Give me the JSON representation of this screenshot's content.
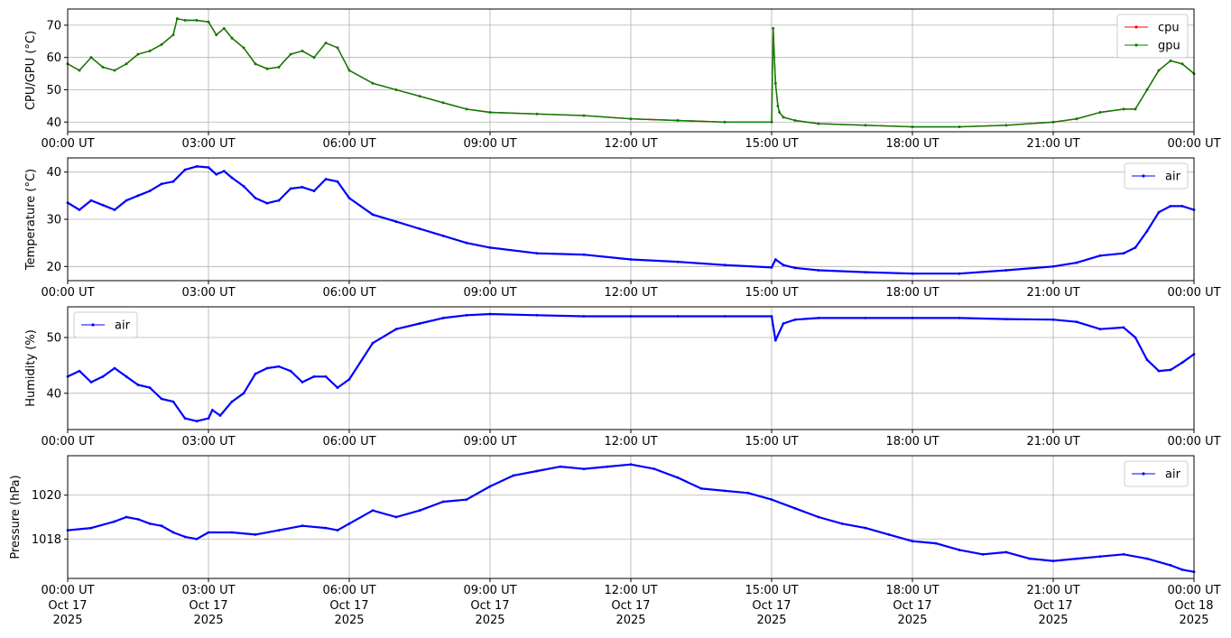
{
  "x_tick_labels": [
    "00:00 UT",
    "03:00 UT",
    "06:00 UT",
    "09:00 UT",
    "12:00 UT",
    "15:00 UT",
    "18:00 UT",
    "21:00 UT",
    "00:00 UT"
  ],
  "x_tick_dates": [
    [
      "Oct 17",
      "2025"
    ],
    [
      "Oct 17",
      "2025"
    ],
    [
      "Oct 17",
      "2025"
    ],
    [
      "Oct 17",
      "2025"
    ],
    [
      "Oct 17",
      "2025"
    ],
    [
      "Oct 17",
      "2025"
    ],
    [
      "Oct 17",
      "2025"
    ],
    [
      "Oct 17",
      "2025"
    ],
    [
      "Oct 18",
      "2025"
    ]
  ],
  "chart_data": [
    {
      "type": "line",
      "ylabel": "CPU/GPU (°C)",
      "xlabel": "",
      "xlim": [
        "2025-10-17 00:00 UT",
        "2025-10-18 00:00 UT"
      ],
      "ylim": [
        37,
        75
      ],
      "yticks": [
        40,
        50,
        60,
        70
      ],
      "grid": true,
      "legend": "top-right",
      "colors": {
        "cpu": "#ff0000",
        "gpu": "#008000"
      },
      "series": [
        {
          "name": "cpu",
          "color": "#ff0000",
          "x": [
            "00:00",
            "00:15",
            "00:30",
            "00:45",
            "01:00",
            "01:15",
            "01:30",
            "01:45",
            "02:00",
            "02:15",
            "02:20",
            "02:30",
            "02:45",
            "03:00",
            "03:10",
            "03:20",
            "03:30",
            "03:45",
            "04:00",
            "04:15",
            "04:30",
            "04:45",
            "05:00",
            "05:15",
            "05:30",
            "05:45",
            "06:00",
            "06:30",
            "07:00",
            "07:30",
            "08:00",
            "08:30",
            "09:00",
            "10:00",
            "11:00",
            "12:00",
            "13:00",
            "14:00",
            "15:00",
            "15:02",
            "15:05",
            "15:08",
            "15:10",
            "15:15",
            "15:30",
            "16:00",
            "17:00",
            "18:00",
            "19:00",
            "20:00",
            "21:00",
            "21:30",
            "22:00",
            "22:30",
            "22:45",
            "23:00",
            "23:15",
            "23:30",
            "23:45",
            "24:00"
          ],
          "values": [
            58,
            56,
            60,
            57,
            56,
            58,
            61,
            62,
            64,
            67,
            72,
            71.5,
            71.5,
            71,
            67,
            69,
            66,
            63,
            58,
            56.5,
            57,
            61,
            62,
            60,
            64.5,
            63,
            56,
            52,
            50,
            48,
            46,
            44,
            43,
            42.5,
            42,
            41,
            40.5,
            40,
            40,
            69,
            52,
            45,
            43,
            41.5,
            40.5,
            39.5,
            39,
            38.5,
            38.5,
            39,
            40,
            41,
            43,
            44,
            44,
            50,
            56,
            59,
            58,
            55
          ]
        },
        {
          "name": "gpu",
          "color": "#008000",
          "x": [
            "00:00",
            "00:15",
            "00:30",
            "00:45",
            "01:00",
            "01:15",
            "01:30",
            "01:45",
            "02:00",
            "02:15",
            "02:20",
            "02:30",
            "02:45",
            "03:00",
            "03:10",
            "03:20",
            "03:30",
            "03:45",
            "04:00",
            "04:15",
            "04:30",
            "04:45",
            "05:00",
            "05:15",
            "05:30",
            "05:45",
            "06:00",
            "06:30",
            "07:00",
            "07:30",
            "08:00",
            "08:30",
            "09:00",
            "10:00",
            "11:00",
            "12:00",
            "13:00",
            "14:00",
            "15:00",
            "15:02",
            "15:05",
            "15:08",
            "15:10",
            "15:15",
            "15:30",
            "16:00",
            "17:00",
            "18:00",
            "19:00",
            "20:00",
            "21:00",
            "21:30",
            "22:00",
            "22:30",
            "22:45",
            "23:00",
            "23:15",
            "23:30",
            "23:45",
            "24:00"
          ],
          "values": [
            58,
            56,
            60,
            57,
            56,
            58,
            61,
            62,
            64,
            67,
            72,
            71.5,
            71.5,
            71,
            67,
            69,
            66,
            63,
            58,
            56.5,
            57,
            61,
            62,
            60,
            64.5,
            63,
            56,
            52,
            50,
            48,
            46,
            44,
            43,
            42.5,
            42,
            41,
            40.5,
            40,
            40,
            69,
            52,
            45,
            43,
            41.5,
            40.5,
            39.5,
            39,
            38.5,
            38.5,
            39,
            40,
            41,
            43,
            44,
            44,
            50,
            56,
            59,
            58,
            55
          ]
        }
      ]
    },
    {
      "type": "line",
      "ylabel": "Temperature (°C)",
      "xlabel": "",
      "xlim": [
        "2025-10-17 00:00 UT",
        "2025-10-18 00:00 UT"
      ],
      "ylim": [
        17,
        43
      ],
      "yticks": [
        20,
        30,
        40
      ],
      "grid": true,
      "legend": "top-right",
      "series": [
        {
          "name": "air",
          "color": "#0000ff",
          "x": [
            "00:00",
            "00:15",
            "00:30",
            "00:45",
            "01:00",
            "01:15",
            "01:30",
            "01:45",
            "02:00",
            "02:15",
            "02:30",
            "02:45",
            "03:00",
            "03:10",
            "03:20",
            "03:30",
            "03:45",
            "04:00",
            "04:15",
            "04:30",
            "04:45",
            "05:00",
            "05:15",
            "05:30",
            "05:45",
            "06:00",
            "06:30",
            "07:00",
            "07:30",
            "08:00",
            "08:30",
            "09:00",
            "10:00",
            "11:00",
            "12:00",
            "13:00",
            "14:00",
            "15:00",
            "15:05",
            "15:15",
            "15:30",
            "16:00",
            "17:00",
            "18:00",
            "19:00",
            "20:00",
            "21:00",
            "21:30",
            "22:00",
            "22:30",
            "22:45",
            "23:00",
            "23:15",
            "23:30",
            "23:45",
            "24:00"
          ],
          "values": [
            33.5,
            32,
            34,
            33,
            32,
            34,
            35,
            36,
            37.5,
            38,
            40.5,
            41.2,
            41,
            39.5,
            40.2,
            38.8,
            37,
            34.5,
            33.4,
            34,
            36.5,
            36.8,
            36,
            38.5,
            38,
            34.5,
            31,
            29.5,
            28,
            26.5,
            25,
            24,
            22.8,
            22.5,
            21.5,
            21,
            20.3,
            19.8,
            21.5,
            20.3,
            19.7,
            19.2,
            18.8,
            18.5,
            18.5,
            19.2,
            20,
            20.8,
            22.3,
            22.8,
            24,
            27.5,
            31.5,
            32.8,
            32.8,
            32
          ]
        }
      ]
    },
    {
      "type": "line",
      "ylabel": "Humidity (%)",
      "xlabel": "",
      "xlim": [
        "2025-10-17 00:00 UT",
        "2025-10-18 00:00 UT"
      ],
      "ylim": [
        33.5,
        55.5
      ],
      "yticks": [
        40,
        50
      ],
      "grid": true,
      "legend": "top-left",
      "series": [
        {
          "name": "air",
          "color": "#0000ff",
          "x": [
            "00:00",
            "00:15",
            "00:30",
            "00:45",
            "01:00",
            "01:15",
            "01:30",
            "01:45",
            "02:00",
            "02:15",
            "02:30",
            "02:45",
            "03:00",
            "03:05",
            "03:15",
            "03:30",
            "03:45",
            "04:00",
            "04:15",
            "04:30",
            "04:45",
            "05:00",
            "05:15",
            "05:30",
            "05:45",
            "06:00",
            "06:30",
            "07:00",
            "07:30",
            "08:00",
            "08:30",
            "09:00",
            "10:00",
            "11:00",
            "12:00",
            "13:00",
            "14:00",
            "15:00",
            "15:05",
            "15:15",
            "15:30",
            "16:00",
            "17:00",
            "18:00",
            "19:00",
            "20:00",
            "21:00",
            "21:30",
            "22:00",
            "22:30",
            "22:45",
            "23:00",
            "23:15",
            "23:30",
            "23:45",
            "24:00"
          ],
          "values": [
            43,
            44,
            42,
            43,
            44.5,
            43,
            41.5,
            41,
            39,
            38.5,
            35.5,
            35,
            35.5,
            37,
            36,
            38.5,
            40,
            43.5,
            44.5,
            44.8,
            44,
            42,
            43,
            43,
            41,
            42.5,
            49,
            51.5,
            52.5,
            53.5,
            54,
            54.2,
            54,
            53.8,
            53.8,
            53.8,
            53.8,
            53.8,
            49.5,
            52.5,
            53.2,
            53.5,
            53.5,
            53.5,
            53.5,
            53.3,
            53.2,
            52.8,
            51.5,
            51.8,
            50,
            46,
            44,
            44.2,
            45.5,
            47
          ]
        }
      ]
    },
    {
      "type": "line",
      "ylabel": "Pressure (hPa)",
      "xlabel": "",
      "xlim": [
        "2025-10-17 00:00 UT",
        "2025-10-18 00:00 UT"
      ],
      "ylim": [
        1016.2,
        1021.8
      ],
      "yticks": [
        1018,
        1020
      ],
      "grid": true,
      "legend": "top-right",
      "series": [
        {
          "name": "air",
          "color": "#0000ff",
          "x": [
            "00:00",
            "00:30",
            "01:00",
            "01:15",
            "01:30",
            "01:45",
            "02:00",
            "02:15",
            "02:30",
            "02:45",
            "03:00",
            "03:30",
            "04:00",
            "04:30",
            "05:00",
            "05:30",
            "05:45",
            "06:00",
            "06:30",
            "07:00",
            "07:30",
            "08:00",
            "08:30",
            "09:00",
            "09:30",
            "10:00",
            "10:30",
            "11:00",
            "11:30",
            "12:00",
            "12:30",
            "13:00",
            "13:30",
            "14:00",
            "14:30",
            "15:00",
            "15:30",
            "16:00",
            "16:30",
            "17:00",
            "17:30",
            "18:00",
            "18:30",
            "19:00",
            "19:30",
            "20:00",
            "20:30",
            "21:00",
            "21:30",
            "22:00",
            "22:30",
            "23:00",
            "23:30",
            "23:45",
            "24:00"
          ],
          "values": [
            1018.4,
            1018.5,
            1018.8,
            1019.0,
            1018.9,
            1018.7,
            1018.6,
            1018.3,
            1018.1,
            1018.0,
            1018.3,
            1018.3,
            1018.2,
            1018.4,
            1018.6,
            1018.5,
            1018.4,
            1018.7,
            1019.3,
            1019.0,
            1019.3,
            1019.7,
            1019.8,
            1020.4,
            1020.9,
            1021.1,
            1021.3,
            1021.2,
            1021.3,
            1021.4,
            1021.2,
            1020.8,
            1020.3,
            1020.2,
            1020.1,
            1019.8,
            1019.4,
            1019.0,
            1018.7,
            1018.5,
            1018.2,
            1017.9,
            1017.8,
            1017.5,
            1017.3,
            1017.4,
            1017.1,
            1017.0,
            1017.1,
            1017.2,
            1017.3,
            1017.1,
            1016.8,
            1016.6,
            1016.5
          ]
        }
      ]
    }
  ]
}
